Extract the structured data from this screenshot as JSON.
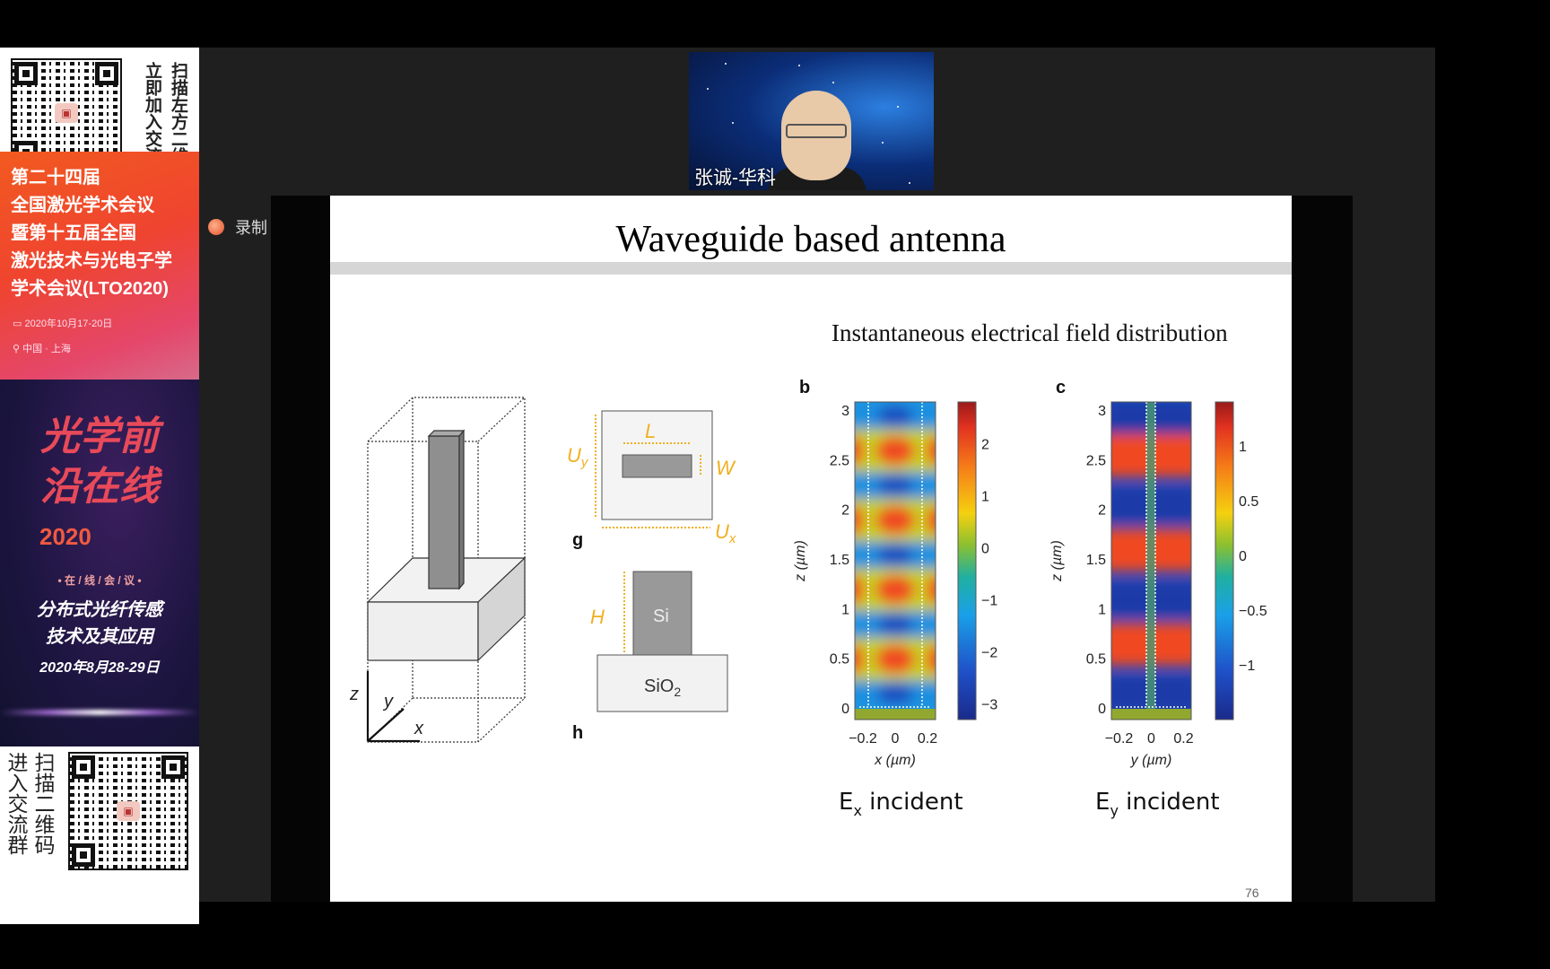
{
  "banner": {
    "top_qr_text": "扫描左方二维码立即加入交流群",
    "top_qr_col1": "扫描左方二维码",
    "top_qr_col2": "立即加入交流群",
    "conference_title": "第二十四届\n全国激光学术会议\n暨第十五届全国\n激光技术与光电子学\n学术会议(LTO2020)",
    "conference_date": "2020年10月17-20日",
    "conference_location": "中国 · 上海",
    "calligraphy_title": "光学前沿在线",
    "calligraphy_year": "2020",
    "online_meeting": "• 在 / 线 / 会 / 议 •",
    "topic_line1": "分布式光纤传感",
    "topic_line2": "技术及其应用",
    "topic_date": "2020年8月28-29日",
    "bottom_qr_col1": "扫描二维码",
    "bottom_qr_col2": "进入交流群",
    "qr_logo_icon": "camera-icon"
  },
  "recording": {
    "label": "录制",
    "indicator_color": "#e0502a"
  },
  "video": {
    "speaker_name": "张诚-华科"
  },
  "slide": {
    "title": "Waveguide based antenna",
    "subtitle": "Instantaneous electrical field distribution",
    "diagram_axes": {
      "z": "z",
      "y": "y",
      "x": "x"
    },
    "panel_g": "g",
    "panel_h": "h",
    "g_labels": {
      "L": "L",
      "W": "W",
      "Uy": "U",
      "Uy_sub": "y",
      "Ux": "U",
      "Ux_sub": "x"
    },
    "h_labels": {
      "H": "H",
      "Si": "Si",
      "SiO2": "SiO",
      "SiO2_sub": "2"
    },
    "accent_color": "#f0b020",
    "plots": [
      {
        "panel": "b",
        "xlabel": "x (µm)",
        "ylabel": "z (µm)",
        "xticks": [
          "−0.2",
          "0",
          "0.2"
        ],
        "yticks": [
          "0",
          "0.5",
          "1",
          "1.5",
          "2",
          "2.5",
          "3"
        ],
        "cbar_ticks": [
          "2",
          "1",
          "0",
          "−1",
          "−2",
          "−3"
        ],
        "cbar_range": [
          -3.3,
          2.8
        ],
        "caption": "E",
        "caption_sub": "x",
        "caption_rest": " incident"
      },
      {
        "panel": "c",
        "xlabel": "y (µm)",
        "ylabel": "z (µm)",
        "xticks": [
          "−0.2",
          "0",
          "0.2"
        ],
        "yticks": [
          "0",
          "0.5",
          "1",
          "1.5",
          "2",
          "2.5",
          "3"
        ],
        "cbar_ticks": [
          "1",
          "0.5",
          "0",
          "−0.5",
          "−1"
        ],
        "cbar_range": [
          -1.5,
          1.4
        ],
        "caption": "E",
        "caption_sub": "y",
        "caption_rest": " incident"
      }
    ],
    "page_number": "76"
  }
}
